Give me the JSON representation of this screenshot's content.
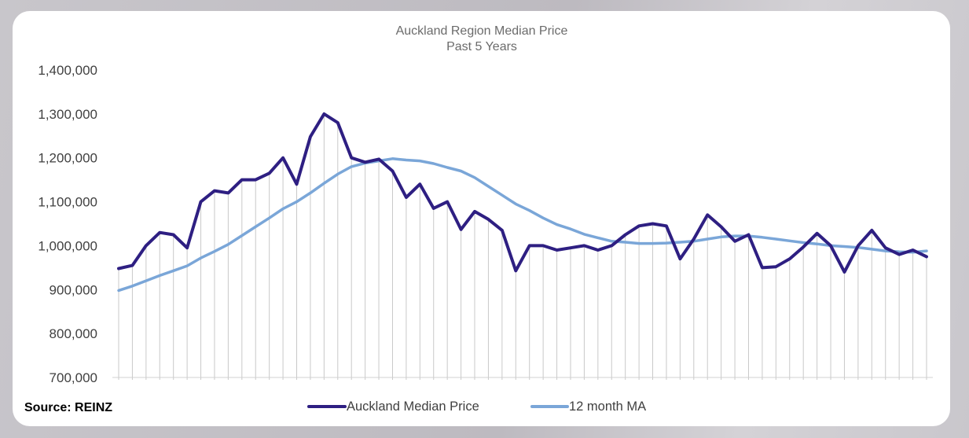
{
  "source": "Source: REINZ",
  "colors": {
    "median": "#2e1f82",
    "ma": "#7aa6d8",
    "drop": "#c9c9c9"
  },
  "chart_data": {
    "type": "line",
    "title": "Auckland Region Median Price",
    "subtitle": "Past 5 Years",
    "xlabel": "",
    "ylabel": "",
    "ylim": [
      700000,
      1400000
    ],
    "yticks": [
      700000,
      800000,
      900000,
      1000000,
      1100000,
      1200000,
      1300000,
      1400000
    ],
    "ytick_labels": [
      "700,000",
      "800,000",
      "900,000",
      "1,000,000",
      "1,100,000",
      "1,200,000",
      "1,300,000",
      "1,400,000"
    ],
    "grid": false,
    "drop_lines": true,
    "legend_position": "bottom",
    "series": [
      {
        "name": "Auckland Median Price",
        "values": [
          948000,
          955000,
          1000000,
          1030000,
          1025000,
          995000,
          1100000,
          1125000,
          1120000,
          1150000,
          1150000,
          1165000,
          1200000,
          1140000,
          1248000,
          1300000,
          1280000,
          1200000,
          1190000,
          1197000,
          1170000,
          1110000,
          1140000,
          1085000,
          1100000,
          1037000,
          1078000,
          1060000,
          1035000,
          943000,
          1000000,
          1000000,
          990000,
          995000,
          1000000,
          990000,
          1000000,
          1025000,
          1045000,
          1050000,
          1045000,
          970000,
          1015000,
          1070000,
          1043000,
          1010000,
          1025000,
          950000,
          952000,
          970000,
          997000,
          1028000,
          1000000,
          940000,
          1000000,
          1035000,
          995000,
          980000,
          990000,
          975000
        ]
      },
      {
        "name": "12 month MA",
        "values": [
          898000,
          908000,
          920000,
          932000,
          943000,
          954000,
          972000,
          987000,
          1003000,
          1023000,
          1043000,
          1063000,
          1084000,
          1100000,
          1120000,
          1142000,
          1163000,
          1180000,
          1188000,
          1193000,
          1198000,
          1195000,
          1193000,
          1187000,
          1178000,
          1170000,
          1155000,
          1135000,
          1115000,
          1095000,
          1080000,
          1063000,
          1048000,
          1038000,
          1026000,
          1018000,
          1010000,
          1008000,
          1005000,
          1005000,
          1006000,
          1008000,
          1010000,
          1015000,
          1020000,
          1022000,
          1022000,
          1019000,
          1015000,
          1011000,
          1007000,
          1004000,
          1000000,
          998000,
          996000,
          992000,
          988000,
          986000,
          985000,
          988000
        ]
      }
    ]
  }
}
